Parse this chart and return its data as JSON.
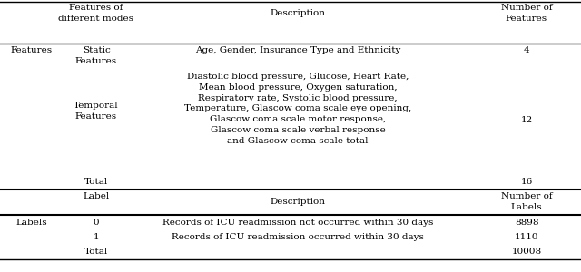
{
  "fig_width": 6.4,
  "fig_height": 3.0,
  "dpi": 100,
  "bg_color": "#ffffff",
  "font_family": "serif",
  "font_size": 7.5,
  "c0": 0.055,
  "c1": 0.165,
  "c2": 0.51,
  "c3": 0.905,
  "header1": [
    "Features of\ndifferent modes",
    "Description",
    "Number of\nFeatures"
  ],
  "static_label": "Features",
  "static_sub": "Static\nFeatures",
  "static_desc": "Age, Gender, Insurance Type and Ethnicity",
  "static_num": "4",
  "temporal_sub": "Temporal\nFeatures",
  "temporal_desc": "Diastolic blood pressure, Glucose, Heart Rate,\nMean blood pressure, Oxygen saturation,\nRespiratory rate, Systolic blood pressure,\nTemperature, Glascow coma scale eye opening,\nGlascow coma scale motor response,\nGlascow coma scale verbal response\nand Glascow coma scale total",
  "temporal_num": "12",
  "feat_total": "Total",
  "feat_total_num": "16",
  "header2": [
    "Label",
    "Description",
    "Number of\nLabels"
  ],
  "labels_label": "Labels",
  "label0": "0",
  "label0_desc": "Records of ICU readmission not occurred within 30 days",
  "label0_num": "8898",
  "label1": "1",
  "label1_desc": "Records of ICU readmission occurred within 30 days",
  "label1_num": "1110",
  "label_total": "Total",
  "label_total_num": "10008"
}
